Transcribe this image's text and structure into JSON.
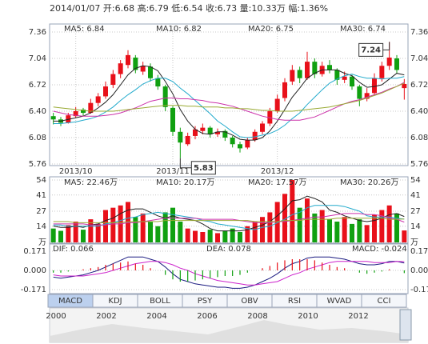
{
  "header": "2014/01/07 开:6.68 高:6.79 低:6.54 收:6.73 量:10.33万 幅:1.36%",
  "tabs": [
    "MACD",
    "KDJ",
    "BOLL",
    "PSY",
    "OBV",
    "RSI",
    "WVAD",
    "CCI"
  ],
  "active_tab": 0,
  "timeline": {
    "categories": [
      "2000",
      "2002",
      "2004",
      "2006",
      "2008",
      "2010",
      "2012"
    ]
  },
  "chart_data": [
    {
      "type": "candlestick",
      "categories": [
        null,
        null,
        null,
        "2013/10",
        null,
        null,
        null,
        null,
        null,
        null,
        null,
        null,
        null,
        null,
        null,
        null,
        "2013/11",
        null,
        null,
        null,
        null,
        null,
        null,
        null,
        null,
        null,
        null,
        null,
        null,
        null,
        "2013/12",
        null,
        null,
        null,
        null,
        null,
        null,
        null,
        null,
        null,
        null,
        null,
        null,
        null,
        null,
        null,
        null,
        null
      ],
      "open": [
        6.34,
        6.3,
        6.26,
        6.34,
        6.42,
        6.38,
        6.5,
        6.58,
        6.72,
        6.85,
        6.96,
        7.05,
        6.88,
        6.94,
        6.8,
        6.7,
        6.44,
        6.15,
        6.0,
        6.1,
        6.16,
        6.2,
        6.12,
        6.16,
        6.08,
        6.0,
        5.96,
        6.05,
        6.15,
        6.25,
        6.4,
        6.56,
        6.76,
        6.9,
        6.8,
        7.0,
        6.85,
        6.96,
        6.9,
        6.78,
        6.82,
        6.7,
        6.55,
        6.62,
        6.8,
        6.95,
        7.04,
        6.68
      ],
      "high": [
        6.38,
        6.33,
        6.38,
        6.45,
        6.44,
        6.55,
        6.62,
        6.76,
        6.9,
        7.02,
        7.14,
        7.08,
        7.0,
        6.98,
        6.84,
        6.72,
        6.46,
        6.2,
        6.14,
        6.22,
        6.25,
        6.22,
        6.19,
        6.18,
        6.1,
        6.03,
        6.08,
        6.18,
        6.28,
        6.44,
        6.6,
        6.8,
        6.96,
        6.94,
        7.12,
        7.04,
        7.0,
        7.02,
        6.92,
        6.88,
        6.84,
        6.72,
        6.68,
        6.86,
        7.0,
        7.24,
        7.08,
        6.79
      ],
      "low": [
        6.24,
        6.22,
        6.25,
        6.32,
        6.34,
        6.37,
        6.46,
        6.55,
        6.68,
        6.8,
        6.92,
        6.86,
        6.84,
        6.76,
        6.66,
        6.4,
        6.1,
        5.83,
        5.98,
        6.06,
        6.12,
        6.08,
        6.09,
        6.04,
        5.96,
        5.9,
        5.94,
        6.03,
        6.12,
        6.22,
        6.38,
        6.52,
        6.72,
        6.74,
        6.78,
        6.8,
        6.82,
        6.86,
        6.72,
        6.74,
        6.66,
        6.46,
        6.52,
        6.6,
        6.76,
        6.9,
        6.86,
        6.54
      ],
      "close": [
        6.3,
        6.26,
        6.35,
        6.4,
        6.38,
        6.5,
        6.58,
        6.7,
        6.85,
        6.98,
        7.08,
        6.9,
        6.95,
        6.8,
        6.7,
        6.45,
        6.15,
        6.02,
        6.1,
        6.18,
        6.2,
        6.12,
        6.15,
        6.08,
        6.0,
        5.95,
        6.05,
        6.15,
        6.25,
        6.4,
        6.55,
        6.75,
        6.9,
        6.8,
        7.0,
        6.85,
        6.95,
        6.9,
        6.78,
        6.82,
        6.7,
        6.55,
        6.62,
        6.8,
        6.95,
        7.05,
        6.9,
        6.73
      ],
      "up_color": "#e8101a",
      "down_color": "#10a010",
      "series": [
        {
          "name": "MA5: 6.84",
          "color": "#222222",
          "values": [
            6.28,
            6.28,
            6.3,
            6.32,
            6.34,
            6.38,
            6.44,
            6.51,
            6.6,
            6.72,
            6.84,
            6.92,
            6.95,
            6.94,
            6.89,
            6.76,
            6.61,
            6.42,
            6.28,
            6.18,
            6.13,
            6.12,
            6.15,
            6.15,
            6.11,
            6.06,
            6.05,
            6.05,
            6.08,
            6.16,
            6.28,
            6.42,
            6.57,
            6.68,
            6.8,
            6.86,
            6.9,
            6.9,
            6.9,
            6.86,
            6.83,
            6.75,
            6.69,
            6.7,
            6.72,
            6.79,
            6.86,
            6.84
          ]
        },
        {
          "name": "MA10: 6.82",
          "color": "#22aacc",
          "values": [
            6.25,
            6.25,
            6.26,
            6.27,
            6.29,
            6.31,
            6.34,
            6.39,
            6.45,
            6.53,
            6.6,
            6.66,
            6.73,
            6.77,
            6.8,
            6.8,
            6.76,
            6.68,
            6.61,
            6.53,
            6.45,
            6.37,
            6.28,
            6.22,
            6.15,
            6.09,
            6.08,
            6.09,
            6.11,
            6.13,
            6.17,
            6.23,
            6.31,
            6.38,
            6.48,
            6.57,
            6.66,
            6.74,
            6.79,
            6.83,
            6.85,
            6.82,
            6.8,
            6.8,
            6.79,
            6.8,
            6.8,
            6.82
          ]
        },
        {
          "name": "MA20: 6.75",
          "color": "#cc33aa",
          "values": [
            6.4,
            6.38,
            6.36,
            6.35,
            6.34,
            6.34,
            6.34,
            6.35,
            6.36,
            6.38,
            6.41,
            6.44,
            6.48,
            6.52,
            6.54,
            6.56,
            6.56,
            6.55,
            6.55,
            6.54,
            6.53,
            6.51,
            6.5,
            6.48,
            6.46,
            6.43,
            6.4,
            6.37,
            6.34,
            6.32,
            6.3,
            6.29,
            6.29,
            6.29,
            6.31,
            6.33,
            6.37,
            6.41,
            6.45,
            6.49,
            6.52,
            6.54,
            6.57,
            6.6,
            6.63,
            6.67,
            6.7,
            6.75
          ]
        },
        {
          "name": "MA30: 6.74",
          "color": "#99aa33",
          "values": [
            6.45,
            6.44,
            6.43,
            6.42,
            6.41,
            6.4,
            6.4,
            6.4,
            6.4,
            6.41,
            6.42,
            6.43,
            6.44,
            6.45,
            6.46,
            6.47,
            6.47,
            6.47,
            6.46,
            6.46,
            6.45,
            6.45,
            6.45,
            6.44,
            6.44,
            6.43,
            6.43,
            6.42,
            6.41,
            6.41,
            6.4,
            6.4,
            6.4,
            6.41,
            6.42,
            6.43,
            6.44,
            6.45,
            6.47,
            6.49,
            6.51,
            6.53,
            6.56,
            6.59,
            6.62,
            6.66,
            6.7,
            6.74
          ]
        }
      ],
      "annotations": [
        {
          "text": "7.24",
          "index": 45
        },
        {
          "text": "5.83",
          "index": 17
        }
      ],
      "ylim": [
        5.76,
        7.36
      ],
      "yticks": [
        7.36,
        7.04,
        6.72,
        {
          "value": 6.4,
          "label": "6.40"
        },
        6.08,
        5.76
      ],
      "grid": true
    },
    {
      "type": "bar",
      "values": [
        12,
        10,
        15,
        18,
        11,
        20,
        16,
        28,
        30,
        32,
        35,
        22,
        25,
        18,
        14,
        26,
        30,
        18,
        12,
        10,
        9,
        11,
        8,
        10,
        12,
        9,
        14,
        18,
        22,
        26,
        35,
        42,
        54,
        30,
        38,
        25,
        28,
        20,
        18,
        22,
        16,
        20,
        15,
        24,
        28,
        32,
        25,
        10.33
      ],
      "series": [
        {
          "name": "MA5: 22.46万",
          "color": "#222222",
          "values": [
            14,
            13,
            13,
            14,
            13,
            15,
            16,
            19,
            21,
            25,
            28,
            29,
            29,
            26,
            23,
            21,
            23,
            21,
            20,
            19,
            16,
            12,
            10,
            10,
            10,
            10,
            11,
            13,
            15,
            18,
            23,
            29,
            36,
            37,
            40,
            38,
            35,
            28,
            26,
            23,
            21,
            19,
            18,
            19,
            21,
            24,
            25,
            22.46
          ]
        },
        {
          "name": "MA10: 20.17万",
          "color": "#22aacc",
          "values": [
            15,
            15,
            14,
            14,
            14,
            14,
            14,
            16,
            17,
            19,
            21,
            22,
            24,
            25,
            26,
            25,
            24,
            23,
            22,
            21,
            19,
            18,
            16,
            15,
            14,
            13,
            12,
            11,
            13,
            14,
            17,
            20,
            24,
            26,
            30,
            32,
            32,
            32,
            32,
            31,
            29,
            27,
            23,
            22,
            22,
            22,
            21,
            20.17
          ]
        },
        {
          "name": "MA20: 17.57万",
          "color": "#cc33aa",
          "values": [
            16,
            16,
            16,
            16,
            16,
            15,
            15,
            15,
            16,
            16,
            17,
            17,
            18,
            19,
            20,
            21,
            21,
            21,
            21,
            21,
            20,
            20,
            20,
            20,
            20,
            19,
            18,
            17,
            17,
            17,
            18,
            18,
            19,
            20,
            21,
            22,
            22,
            23,
            24,
            25,
            25,
            25,
            24,
            24,
            23,
            21,
            20,
            17.57
          ]
        },
        {
          "name": "MA30: 20.26万",
          "color": "#99aa33",
          "values": [
            18,
            18,
            18,
            17,
            17,
            17,
            17,
            17,
            17,
            17,
            18,
            18,
            18,
            18,
            18,
            19,
            19,
            19,
            19,
            19,
            19,
            19,
            19,
            19,
            19,
            19,
            19,
            18,
            18,
            18,
            18,
            19,
            19,
            19,
            20,
            20,
            20,
            20,
            21,
            21,
            21,
            21,
            21,
            21,
            21,
            20,
            20,
            20.26
          ]
        }
      ],
      "ylim": [
        0,
        54
      ],
      "yticks": [
        54,
        41,
        27,
        14,
        {
          "value": 0,
          "label": "万"
        }
      ],
      "grid": true
    },
    {
      "type": "macd",
      "series": [
        {
          "name": "DIF: 0.066",
          "color": "#1a1a80",
          "values": [
            -0.06,
            -0.07,
            -0.06,
            -0.05,
            -0.04,
            -0.02,
            0.0,
            0.03,
            0.06,
            0.09,
            0.12,
            0.12,
            0.12,
            0.1,
            0.08,
            0.03,
            -0.03,
            -0.08,
            -0.1,
            -0.12,
            -0.13,
            -0.14,
            -0.15,
            -0.15,
            -0.16,
            -0.16,
            -0.15,
            -0.13,
            -0.1,
            -0.07,
            -0.03,
            0.02,
            0.06,
            0.08,
            0.11,
            0.12,
            0.12,
            0.12,
            0.11,
            0.1,
            0.08,
            0.06,
            0.05,
            0.05,
            0.06,
            0.08,
            0.08,
            0.066
          ]
        },
        {
          "name": "DEA: 0.078",
          "color": "#cc22cc",
          "values": [
            -0.04,
            -0.05,
            -0.05,
            -0.05,
            -0.05,
            -0.04,
            -0.03,
            -0.02,
            0.0,
            0.02,
            0.04,
            0.06,
            0.07,
            0.08,
            0.08,
            0.07,
            0.05,
            0.02,
            0.0,
            -0.03,
            -0.05,
            -0.07,
            -0.09,
            -0.1,
            -0.11,
            -0.12,
            -0.13,
            -0.13,
            -0.12,
            -0.11,
            -0.1,
            -0.07,
            -0.04,
            -0.02,
            0.01,
            0.03,
            0.05,
            0.07,
            0.08,
            0.08,
            0.08,
            0.08,
            0.08,
            0.07,
            0.07,
            0.07,
            0.08,
            0.078
          ]
        },
        {
          "name": "MACD: -0.024",
          "type": "bar",
          "values": [
            -0.02,
            -0.02,
            -0.01,
            0,
            0.01,
            0.02,
            0.03,
            0.05,
            0.06,
            0.07,
            0.08,
            0.06,
            0.05,
            0.02,
            0,
            -0.04,
            -0.08,
            -0.1,
            -0.1,
            -0.09,
            -0.08,
            -0.07,
            -0.06,
            -0.05,
            -0.05,
            -0.04,
            -0.02,
            0,
            0.02,
            0.04,
            0.07,
            0.09,
            0.1,
            0.1,
            0.1,
            0.09,
            0.07,
            0.05,
            0.03,
            0.02,
            0,
            -0.02,
            -0.03,
            -0.02,
            -0.01,
            0.01,
            0,
            -0.024
          ]
        }
      ],
      "up_color": "#e8101a",
      "down_color": "#10a010",
      "ylim": [
        -0.2,
        0.2
      ],
      "yticks": [
        0.171,
        {
          "value": 0,
          "label": "0.000"
        },
        -0.171
      ],
      "grid": true
    }
  ]
}
